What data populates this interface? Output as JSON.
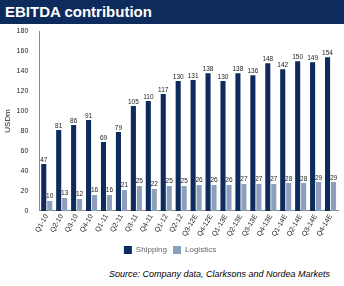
{
  "chart_data": {
    "type": "bar",
    "title": "EBITDA contribution",
    "y_label": "USDm",
    "source": "Source: Company data, Clarksons and Nordea Markets",
    "categories": [
      "Q1-10",
      "Q2-10",
      "Q3-10",
      "Q4-10",
      "Q1-11",
      "Q2-11",
      "Q3-11",
      "Q4-11",
      "Q1-12",
      "Q2-12",
      "Q3-12E",
      "Q4-12E",
      "Q1-13E",
      "Q2-13E",
      "Q3-13E",
      "Q4-13E",
      "Q1-14E",
      "Q2-14E",
      "Q3-14E",
      "Q4-14E"
    ],
    "series": [
      {
        "name": "Shipping",
        "color": "#0d2b5c",
        "values": [
          47,
          81,
          86,
          91,
          69,
          79,
          105,
          110,
          117,
          130,
          131,
          138,
          130,
          138,
          136,
          148,
          142,
          150,
          149,
          154
        ]
      },
      {
        "name": "Logistics",
        "color": "#8c9fbd",
        "values": [
          10,
          13,
          12,
          16,
          16,
          21,
          25,
          22,
          25,
          25,
          26,
          26,
          26,
          27,
          27,
          27,
          28,
          28,
          29,
          29
        ]
      }
    ],
    "ylim": [
      0,
      180
    ],
    "yticks": [
      0,
      20,
      40,
      60,
      80,
      100,
      120,
      140,
      160,
      180
    ],
    "grid": false,
    "legend": "bottom",
    "data_labels": true
  }
}
